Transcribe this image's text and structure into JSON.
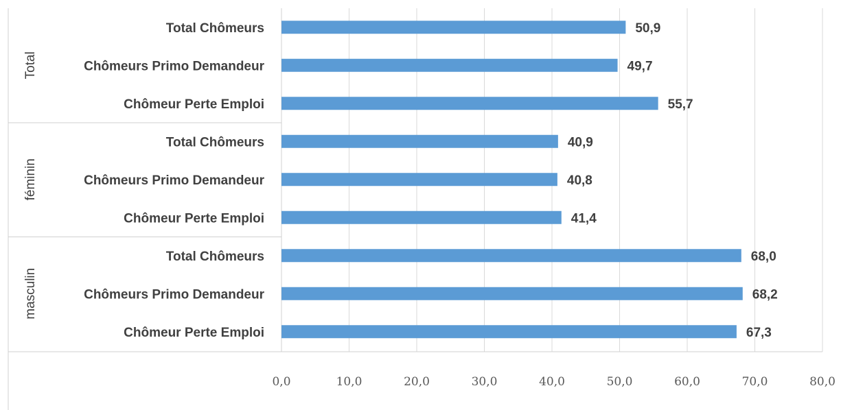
{
  "title": "",
  "chart_data": {
    "type": "bar",
    "orientation": "horizontal",
    "groups": [
      {
        "name": "Total",
        "items": [
          {
            "label": "Total Chômeurs",
            "value": 50.9,
            "display": "50,9"
          },
          {
            "label": "Chômeurs Primo Demandeur",
            "value": 49.7,
            "display": "49,7"
          },
          {
            "label": "Chômeur Perte Emploi",
            "value": 55.7,
            "display": "55,7"
          }
        ]
      },
      {
        "name": "féminin",
        "items": [
          {
            "label": "Total Chômeurs",
            "value": 40.9,
            "display": "40,9"
          },
          {
            "label": "Chômeurs Primo Demandeur",
            "value": 40.8,
            "display": "40,8"
          },
          {
            "label": "Chômeur Perte Emploi",
            "value": 41.4,
            "display": "41,4"
          }
        ]
      },
      {
        "name": "masculin",
        "items": [
          {
            "label": "Total Chômeurs",
            "value": 68.0,
            "display": "68,0"
          },
          {
            "label": "Chômeurs Primo Demandeur",
            "value": 68.2,
            "display": "68,2"
          },
          {
            "label": "Chômeur Perte Emploi",
            "value": 67.3,
            "display": "67,3"
          }
        ]
      }
    ],
    "xlim": [
      0,
      80
    ],
    "xticks": [
      "0,0",
      "10,0",
      "20,0",
      "30,0",
      "40,0",
      "50,0",
      "60,0",
      "70,0",
      "80,0"
    ],
    "bar_color": "#5b9bd5",
    "grid": true,
    "legend": "none"
  }
}
